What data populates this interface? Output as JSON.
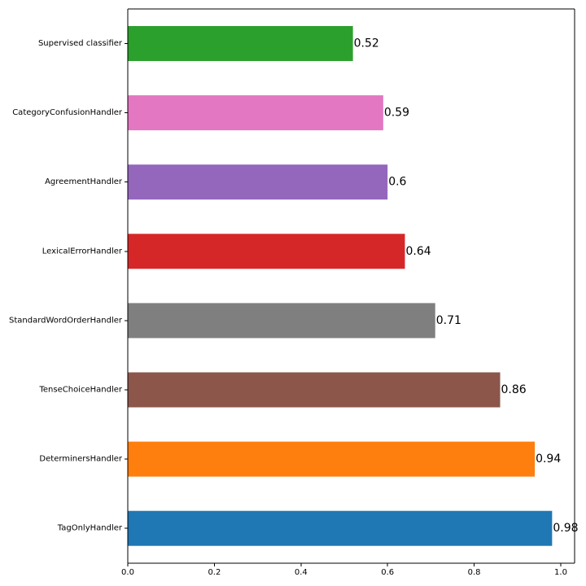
{
  "chart_data": {
    "type": "bar",
    "orientation": "horizontal",
    "categories": [
      "Supervised classifier",
      "CategoryConfusionHandler",
      "AgreementHandler",
      "LexicalErrorHandler",
      "StandardWordOrderHandler",
      "TenseChoiceHandler",
      "DeterminersHandler",
      "TagOnlyHandler"
    ],
    "values": [
      0.52,
      0.59,
      0.6,
      0.64,
      0.71,
      0.86,
      0.94,
      0.98
    ],
    "value_labels": [
      "0.52",
      "0.59",
      "0.6",
      "0.64",
      "0.71",
      "0.86",
      "0.94",
      "0.98"
    ],
    "colors": [
      "#2ca02c",
      "#e377c2",
      "#9467bd",
      "#d62728",
      "#7f7f7f",
      "#8c564b",
      "#ff7f0e",
      "#1f77b4"
    ],
    "xlim": [
      0,
      1.03
    ],
    "xticks": [
      0.0,
      0.2,
      0.4,
      0.6,
      0.8,
      1.0
    ],
    "xtick_labels": [
      "0.0",
      "0.2",
      "0.4",
      "0.6",
      "0.8",
      "1.0"
    ],
    "title": "",
    "xlabel": "",
    "ylabel": "",
    "grid": false,
    "legend": "none"
  }
}
